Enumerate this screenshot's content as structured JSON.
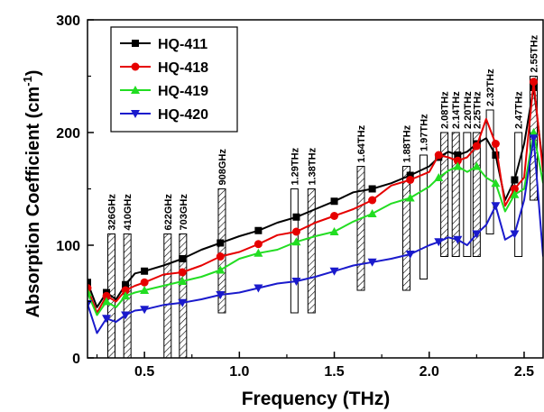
{
  "chart_data": {
    "type": "line",
    "xlabel": "Frequency (THz)",
    "ylabel": "Absorption Coefficient (cm",
    "ylabel_sup": "-1",
    "ylabel_close": ")",
    "xlim": [
      0.2,
      2.6
    ],
    "ylim": [
      0,
      300
    ],
    "x_ticks": [
      0.5,
      1.0,
      1.5,
      2.0,
      2.5
    ],
    "x_tick_labels": [
      "0.5",
      "1.0",
      "1.5",
      "2.0",
      "2.5"
    ],
    "y_ticks": [
      0,
      100,
      200,
      300
    ],
    "y_tick_labels": [
      "0",
      "100",
      "200",
      "300"
    ],
    "legend_position": "top-left",
    "grid": false,
    "series": [
      {
        "name": "HQ-411",
        "color": "#000000",
        "marker": "square",
        "x": [
          0.2,
          0.25,
          0.3,
          0.35,
          0.4,
          0.45,
          0.5,
          0.6,
          0.7,
          0.8,
          0.9,
          1.0,
          1.1,
          1.2,
          1.3,
          1.4,
          1.5,
          1.6,
          1.7,
          1.8,
          1.9,
          2.0,
          2.05,
          2.1,
          2.15,
          2.2,
          2.25,
          2.3,
          2.35,
          2.4,
          2.45,
          2.5,
          2.55,
          2.6
        ],
        "y": [
          67,
          45,
          58,
          52,
          65,
          75,
          77,
          82,
          88,
          96,
          102,
          108,
          113,
          120,
          125,
          132,
          139,
          147,
          150,
          155,
          162,
          170,
          178,
          183,
          180,
          183,
          190,
          195,
          180,
          140,
          158,
          190,
          240,
          170
        ]
      },
      {
        "name": "HQ-418",
        "color": "#e60000",
        "marker": "circle",
        "x": [
          0.2,
          0.25,
          0.3,
          0.35,
          0.4,
          0.45,
          0.5,
          0.6,
          0.7,
          0.8,
          0.9,
          1.0,
          1.1,
          1.2,
          1.3,
          1.4,
          1.5,
          1.6,
          1.7,
          1.8,
          1.9,
          2.0,
          2.05,
          2.1,
          2.15,
          2.2,
          2.25,
          2.3,
          2.35,
          2.4,
          2.45,
          2.5,
          2.55,
          2.6
        ],
        "y": [
          62,
          40,
          55,
          50,
          60,
          64,
          67,
          74,
          76,
          82,
          90,
          94,
          101,
          109,
          112,
          120,
          126,
          132,
          140,
          153,
          158,
          165,
          180,
          178,
          175,
          178,
          188,
          212,
          190,
          135,
          150,
          160,
          245,
          165
        ]
      },
      {
        "name": "HQ-419",
        "color": "#22dd22",
        "marker": "triangle-up",
        "x": [
          0.2,
          0.25,
          0.3,
          0.35,
          0.4,
          0.45,
          0.5,
          0.6,
          0.7,
          0.8,
          0.9,
          1.0,
          1.1,
          1.2,
          1.3,
          1.4,
          1.5,
          1.6,
          1.7,
          1.8,
          1.9,
          2.0,
          2.05,
          2.1,
          2.15,
          2.2,
          2.25,
          2.3,
          2.35,
          2.4,
          2.45,
          2.5,
          2.55,
          2.6
        ],
        "y": [
          58,
          38,
          50,
          45,
          55,
          58,
          60,
          64,
          68,
          72,
          78,
          88,
          93,
          96,
          103,
          108,
          112,
          121,
          128,
          137,
          142,
          152,
          160,
          166,
          170,
          165,
          170,
          160,
          155,
          130,
          145,
          150,
          200,
          155
        ]
      },
      {
        "name": "HQ-420",
        "color": "#1a1acc",
        "marker": "triangle-down",
        "x": [
          0.2,
          0.25,
          0.3,
          0.35,
          0.4,
          0.45,
          0.5,
          0.6,
          0.7,
          0.8,
          0.9,
          1.0,
          1.1,
          1.2,
          1.3,
          1.4,
          1.5,
          1.6,
          1.7,
          1.8,
          1.9,
          2.0,
          2.05,
          2.1,
          2.15,
          2.2,
          2.25,
          2.3,
          2.35,
          2.4,
          2.45,
          2.5,
          2.55,
          2.6
        ],
        "y": [
          48,
          22,
          35,
          32,
          38,
          42,
          43,
          47,
          49,
          52,
          56,
          58,
          62,
          66,
          68,
          72,
          77,
          82,
          85,
          88,
          92,
          100,
          103,
          107,
          105,
          100,
          110,
          118,
          135,
          105,
          110,
          140,
          195,
          90
        ]
      }
    ],
    "annotations": [
      {
        "label": "326GHz",
        "x": 0.326,
        "hatched": true,
        "ymin": 0,
        "ymax": 110
      },
      {
        "label": "410GHz",
        "x": 0.41,
        "hatched": true,
        "ymin": 0,
        "ymax": 110
      },
      {
        "label": "622GHz",
        "x": 0.622,
        "hatched": true,
        "ymin": 0,
        "ymax": 110
      },
      {
        "label": "703GHz",
        "x": 0.703,
        "hatched": true,
        "ymin": 0,
        "ymax": 110
      },
      {
        "label": "908GHz",
        "x": 0.908,
        "hatched": true,
        "ymin": 40,
        "ymax": 150
      },
      {
        "label": "1.29THz",
        "x": 1.29,
        "hatched": false,
        "ymin": 40,
        "ymax": 150
      },
      {
        "label": "1.38THz",
        "x": 1.38,
        "hatched": true,
        "ymin": 40,
        "ymax": 150
      },
      {
        "label": "1.64THz",
        "x": 1.64,
        "hatched": true,
        "ymin": 60,
        "ymax": 170
      },
      {
        "label": "1.88THz",
        "x": 1.88,
        "hatched": true,
        "ymin": 60,
        "ymax": 170
      },
      {
        "label": "1.97THz",
        "x": 1.97,
        "hatched": false,
        "ymin": 70,
        "ymax": 180
      },
      {
        "label": "2.08THz",
        "x": 2.08,
        "hatched": true,
        "ymin": 90,
        "ymax": 200
      },
      {
        "label": "2.14THz",
        "x": 2.14,
        "hatched": true,
        "ymin": 90,
        "ymax": 200
      },
      {
        "label": "2.20THz",
        "x": 2.2,
        "hatched": false,
        "ymin": 90,
        "ymax": 200
      },
      {
        "label": "2.25THz",
        "x": 2.25,
        "hatched": true,
        "ymin": 90,
        "ymax": 200
      },
      {
        "label": "2.32THz",
        "x": 2.32,
        "hatched": false,
        "ymin": 110,
        "ymax": 220
      },
      {
        "label": "2.47THz",
        "x": 2.47,
        "hatched": false,
        "ymin": 90,
        "ymax": 200
      },
      {
        "label": "2.55THz",
        "x": 2.55,
        "hatched": true,
        "ymin": 140,
        "ymax": 250
      }
    ]
  }
}
